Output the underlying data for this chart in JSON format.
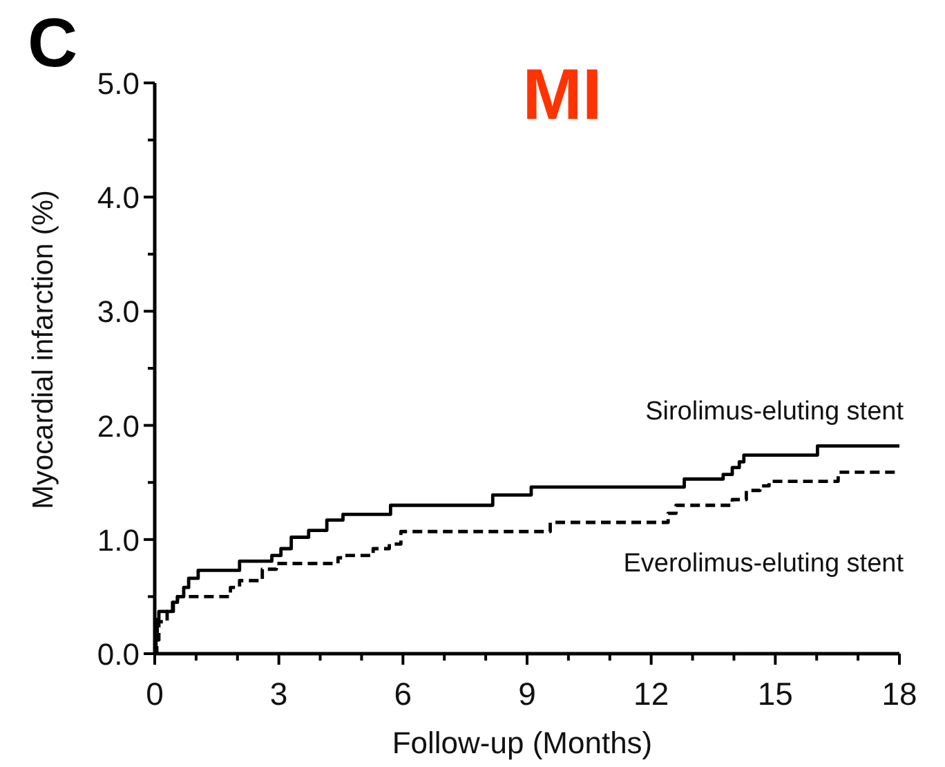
{
  "chart_data": {
    "type": "step",
    "title": "MI",
    "xlabel": "Follow-up (Months)",
    "ylabel": "Myocardial infarction (%)",
    "annotations": [
      "C"
    ],
    "xlim": [
      0,
      18
    ],
    "ylim": [
      0,
      5
    ],
    "xticks": [
      0,
      {
        "value": 1,
        "label": null
      },
      {
        "value": 2,
        "label": null
      },
      3,
      {
        "value": 4,
        "label": null
      },
      {
        "value": 5,
        "label": null
      },
      6,
      {
        "value": 7,
        "label": null
      },
      {
        "value": 8,
        "label": null
      },
      9,
      {
        "value": 10,
        "label": null
      },
      {
        "value": 11,
        "label": null
      },
      12,
      {
        "value": 13,
        "label": null
      },
      {
        "value": 14,
        "label": null
      },
      15,
      {
        "value": 16,
        "label": null
      },
      {
        "value": 17,
        "label": null
      },
      18
    ],
    "yticks": [
      {
        "value": 0,
        "label": "0.0"
      },
      {
        "value": 0.5,
        "label": null
      },
      {
        "value": 1,
        "label": "1.0"
      },
      {
        "value": 1.5,
        "label": null
      },
      {
        "value": 2,
        "label": "2.0"
      },
      {
        "value": 2.5,
        "label": null
      },
      {
        "value": 3,
        "label": "3.0"
      },
      {
        "value": 3.5,
        "label": null
      },
      {
        "value": 4,
        "label": "4.0"
      },
      {
        "value": 4.5,
        "label": null
      },
      {
        "value": 5,
        "label": "5.0"
      }
    ],
    "marker": "none",
    "series": [
      {
        "name": "Sirolimus-eluting stent",
        "color": "#000000",
        "line_style": "solid",
        "x": [
          0,
          0.03,
          0.06,
          0.1,
          0.43,
          0.55,
          0.7,
          0.82,
          1.05,
          2.05,
          2.83,
          3.05,
          3.3,
          3.72,
          4.16,
          4.55,
          5.7,
          8.17,
          9.1,
          12.8,
          13.74,
          13.96,
          14.13,
          14.24,
          16.02,
          18
        ],
        "values": [
          0,
          0.15,
          0.3,
          0.37,
          0.45,
          0.5,
          0.58,
          0.66,
          0.73,
          0.81,
          0.86,
          0.92,
          1.02,
          1.08,
          1.17,
          1.22,
          1.3,
          1.39,
          1.46,
          1.53,
          1.57,
          1.63,
          1.68,
          1.74,
          1.82,
          1.82
        ]
      },
      {
        "name": "Everolimus-eluting stent",
        "color": "#000000",
        "line_style": "dashed",
        "x": [
          0,
          0.05,
          0.1,
          0.3,
          0.45,
          0.55,
          1.83,
          2.05,
          2.6,
          2.94,
          4.43,
          4.6,
          5.28,
          5.67,
          5.95,
          9.56,
          12.41,
          12.6,
          13.96,
          14.3,
          14.63,
          14.85,
          16.52,
          18
        ],
        "values": [
          0,
          0.12,
          0.28,
          0.37,
          0.45,
          0.5,
          0.58,
          0.64,
          0.74,
          0.79,
          0.84,
          0.86,
          0.92,
          0.96,
          1.07,
          1.15,
          1.23,
          1.3,
          1.35,
          1.43,
          1.47,
          1.51,
          1.59,
          1.59
        ]
      }
    ]
  }
}
